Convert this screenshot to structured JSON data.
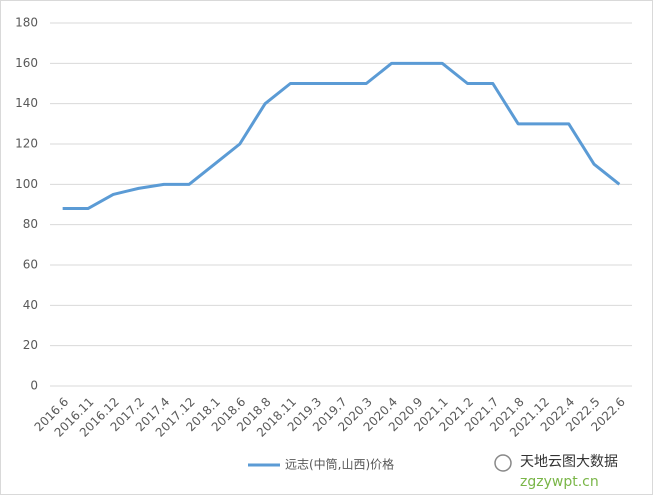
{
  "chart_data": {
    "type": "line",
    "categories": [
      "2016.6",
      "2016.11",
      "2016.12",
      "2017.2",
      "2017.4",
      "2017.12",
      "2018.1",
      "2018.6",
      "2018.8",
      "2018.11",
      "2019.3",
      "2019.7",
      "2020.3",
      "2020.4",
      "2020.9",
      "2021.1",
      "2021.2",
      "2021.7",
      "2021.8",
      "2021.12",
      "2022.4",
      "2022.5",
      "2022.6"
    ],
    "series": [
      {
        "name": "远志(中筒,山西)价格",
        "color": "#5b9bd5",
        "values": [
          88,
          88,
          95,
          98,
          100,
          100,
          110,
          120,
          140,
          150,
          150,
          150,
          150,
          160,
          160,
          160,
          150,
          150,
          130,
          130,
          130,
          110,
          100
        ]
      }
    ],
    "ylim": [
      0,
      180
    ],
    "yticks": [
      0,
      20,
      40,
      60,
      80,
      100,
      120,
      140,
      160,
      180
    ],
    "grid": true,
    "legend": "bottom",
    "watermark": {
      "name": "天地云图大数据",
      "url": "zgzywpt.cn"
    }
  }
}
